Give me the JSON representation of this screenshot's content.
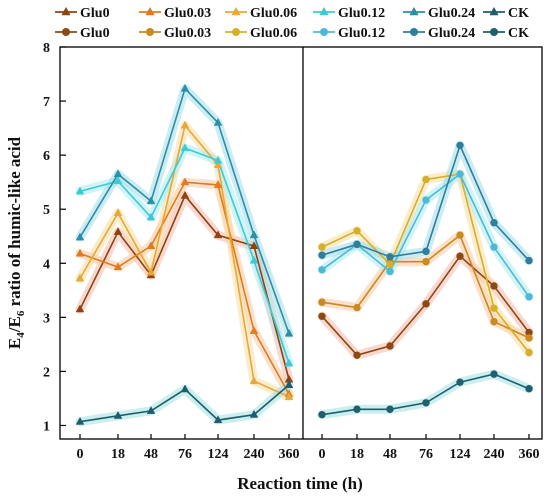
{
  "chart_data": {
    "type": "line",
    "categories": [
      "0",
      "18",
      "48",
      "76",
      "124",
      "240",
      "360"
    ],
    "xlabel": "Reaction time (h)",
    "ylabel_main": "E",
    "ylabel_sub1": "4",
    "ylabel_mid": "/E",
    "ylabel_sub2": "6",
    "ylabel_rest": " ratio of humic-like acid",
    "ylim": [
      0.75,
      8
    ],
    "yticks": [
      "1",
      "2",
      "3",
      "4",
      "5",
      "6",
      "7",
      "8"
    ],
    "legend_position": "top",
    "legend_row1": [
      {
        "name": "Glu0",
        "color": "#8b4513",
        "marker": "triangle"
      },
      {
        "name": "Glu0.03",
        "color": "#e07b20",
        "marker": "triangle"
      },
      {
        "name": "Glu0.06",
        "color": "#e8a838",
        "marker": "triangle"
      },
      {
        "name": "Glu0.12",
        "color": "#3ec9d6",
        "marker": "triangle"
      },
      {
        "name": "Glu0.24",
        "color": "#2b8fa6",
        "marker": "triangle"
      },
      {
        "name": "CK",
        "color": "#1e5e6a",
        "marker": "triangle"
      }
    ],
    "legend_row2": [
      {
        "name": "Glu0",
        "color": "#8b4a14",
        "marker": "circle"
      },
      {
        "name": "Glu0.03",
        "color": "#c98a1e",
        "marker": "circle"
      },
      {
        "name": "Glu0.06",
        "color": "#d4b02a",
        "marker": "circle"
      },
      {
        "name": "Glu0.12",
        "color": "#4fb8d8",
        "marker": "circle"
      },
      {
        "name": "Glu0.24",
        "color": "#2f7e9e",
        "marker": "circle"
      },
      {
        "name": "CK",
        "color": "#1f5f6e",
        "marker": "circle"
      }
    ],
    "panels": [
      {
        "marker": "triangle",
        "series": [
          {
            "name": "Glu0",
            "color": "#8b4513",
            "band": "#f5b8a8",
            "values": [
              3.15,
              4.58,
              3.78,
              5.25,
              4.52,
              4.32,
              1.85
            ]
          },
          {
            "name": "Glu0.03",
            "color": "#e07b20",
            "band": "#f8c9a0",
            "values": [
              4.18,
              3.93,
              4.32,
              5.5,
              5.45,
              2.75,
              1.58
            ]
          },
          {
            "name": "Glu0.06",
            "color": "#e8a838",
            "band": "#f8dca0",
            "values": [
              3.72,
              4.93,
              3.83,
              6.55,
              5.82,
              1.82,
              1.53
            ]
          },
          {
            "name": "Glu0.12",
            "color": "#3ec9d6",
            "band": "#a8ecf0",
            "values": [
              5.33,
              5.52,
              4.85,
              6.13,
              5.9,
              4.05,
              2.15
            ]
          },
          {
            "name": "Glu0.24",
            "color": "#2b8fa6",
            "band": "#a0dce8",
            "values": [
              4.48,
              5.65,
              5.15,
              7.23,
              6.6,
              4.52,
              2.7
            ]
          },
          {
            "name": "CK",
            "color": "#1e5e6a",
            "band": "#a0e0e0",
            "values": [
              1.07,
              1.18,
              1.27,
              1.67,
              1.1,
              1.2,
              1.75
            ]
          }
        ]
      },
      {
        "marker": "circle",
        "series": [
          {
            "name": "Glu0",
            "color": "#8b4a14",
            "band": "#f5b8a8",
            "values": [
              3.02,
              2.3,
              2.47,
              3.25,
              4.13,
              3.58,
              2.72
            ]
          },
          {
            "name": "Glu0.03",
            "color": "#c98a1e",
            "band": "#f8c9a0",
            "values": [
              3.28,
              3.18,
              4.03,
              4.03,
              4.52,
              2.92,
              2.62
            ]
          },
          {
            "name": "Glu0.06",
            "color": "#d4b02a",
            "band": "#f8dca0",
            "values": [
              4.3,
              4.6,
              3.98,
              5.55,
              5.65,
              3.17,
              2.35
            ]
          },
          {
            "name": "Glu0.12",
            "color": "#4fb8d8",
            "band": "#a8ecf0",
            "values": [
              3.88,
              4.35,
              3.85,
              5.17,
              5.65,
              4.3,
              3.38
            ]
          },
          {
            "name": "Glu0.24",
            "color": "#2f7e9e",
            "band": "#a0dce8",
            "values": [
              4.15,
              4.35,
              4.12,
              4.22,
              6.18,
              4.75,
              4.05
            ]
          },
          {
            "name": "CK",
            "color": "#1f5f6e",
            "band": "#a0e0e0",
            "values": [
              1.2,
              1.3,
              1.3,
              1.42,
              1.8,
              1.95,
              1.68
            ]
          }
        ]
      }
    ]
  }
}
